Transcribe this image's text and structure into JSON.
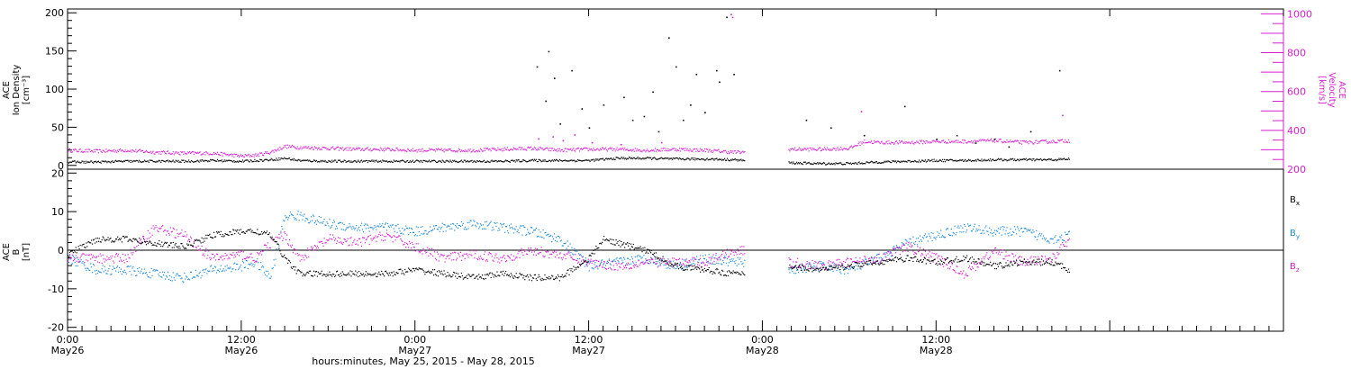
{
  "colors": {
    "density": "#000000",
    "velocity": "#d61fd0",
    "bx": "#000000",
    "by": "#1e8ad6",
    "bz": "#d61fd0",
    "axis": "#000000"
  },
  "xlabel": "hours:minutes, May 25, 2015 - May 28, 2015",
  "chart_data": [
    {
      "type": "scatter",
      "panel": "top",
      "ylabel_lines": [
        "ACE",
        "Ion Density",
        "[cm⁻³]"
      ],
      "y2label_lines": [
        "ACE",
        "Velocity",
        "[km/s]"
      ],
      "ylim": [
        -5,
        205
      ],
      "y2lim": [
        200,
        1025
      ],
      "yticks": [
        0,
        50,
        100,
        150,
        200
      ],
      "y2ticks": [
        200,
        400,
        600,
        800,
        1000
      ],
      "xlim_hours": [
        0,
        84
      ],
      "data_gaps_hours": [
        [
          46.8,
          49.8
        ]
      ],
      "data_end_hour": 69.2,
      "series": [
        {
          "key": "density",
          "axis": "left",
          "x_hours": [
            0,
            2,
            4,
            6,
            8,
            10,
            12,
            14,
            15,
            16,
            18,
            20,
            22,
            24,
            26,
            28,
            30,
            32,
            34,
            36,
            38,
            40,
            42,
            44,
            46,
            46.8,
            49.8,
            52,
            54,
            56,
            58,
            60,
            62,
            64,
            66,
            68,
            69.2
          ],
          "values": [
            5,
            5,
            6,
            6,
            6,
            7,
            6,
            8,
            10,
            7,
            6,
            6,
            6,
            6,
            6,
            6,
            6,
            7,
            7,
            7,
            10,
            10,
            9,
            9,
            8,
            7,
            4,
            3,
            3,
            5,
            6,
            7,
            7,
            8,
            8,
            8,
            9
          ],
          "spikes_x_hours": [
            32.4,
            33.0,
            33.2,
            33.6,
            34.0,
            34.8,
            35.5,
            36.0,
            37.0,
            38.4,
            39.0,
            39.8,
            40.4,
            40.8,
            41.5,
            42.0,
            42.5,
            43.0,
            43.4,
            44.0,
            44.8,
            45.0,
            45.5,
            46.0,
            51.0,
            52.7,
            55.0,
            57.8,
            60.0,
            61.4,
            62.7,
            64.0,
            65.0,
            66.5,
            68.5
          ],
          "spikes_values": [
            130,
            85,
            150,
            115,
            55,
            125,
            75,
            50,
            80,
            90,
            60,
            65,
            97,
            45,
            168,
            130,
            60,
            80,
            120,
            70,
            125,
            110,
            195,
            120,
            60,
            50,
            40,
            78,
            35,
            40,
            30,
            35,
            25,
            45,
            125
          ]
        },
        {
          "key": "velocity",
          "axis": "right",
          "x_hours": [
            0,
            2,
            4,
            6,
            8,
            10,
            12,
            13,
            14,
            15,
            16,
            18,
            20,
            22,
            24,
            26,
            28,
            30,
            32,
            34,
            36,
            38,
            40,
            42,
            44,
            46,
            46.8,
            49.8,
            52,
            54,
            55,
            56,
            58,
            60,
            62,
            64,
            66,
            68,
            69.2
          ],
          "values": [
            300,
            295,
            300,
            290,
            285,
            285,
            270,
            275,
            290,
            320,
            315,
            310,
            305,
            305,
            300,
            300,
            300,
            305,
            310,
            300,
            305,
            305,
            300,
            305,
            300,
            290,
            290,
            305,
            305,
            310,
            345,
            340,
            340,
            345,
            345,
            350,
            340,
            345,
            350
          ],
          "spikes_x_hours": [
            32.5,
            33.5,
            34.2,
            35.0,
            36.2,
            38.2,
            41.0,
            45.8,
            45.9,
            54.8,
            68.7
          ],
          "spikes_values": [
            360,
            370,
            350,
            380,
            340,
            330,
            340,
            1000,
            985,
            500,
            480
          ]
        }
      ]
    },
    {
      "type": "scatter",
      "panel": "bottom",
      "ylabel_lines": [
        "ACE",
        "B",
        "[nT]"
      ],
      "ylim": [
        -21,
        21
      ],
      "yticks": [
        -20,
        -10,
        0,
        10,
        20
      ],
      "zero_line": true,
      "xticks": [
        "0:00",
        "12:00",
        "0:00",
        "12:00",
        "0:00",
        "12:00"
      ],
      "xtick_sublabels": [
        "May26",
        "May26",
        "May27",
        "May27",
        "May28",
        "May28"
      ],
      "xticks_hours": [
        0,
        12,
        24,
        36,
        48,
        60
      ],
      "xlim_hours": [
        0,
        84
      ],
      "data_gaps_hours": [
        [
          46.8,
          49.8
        ]
      ],
      "data_end_hour": 69.2,
      "legend": [
        {
          "base": "B",
          "sub": "x"
        },
        {
          "base": "B",
          "sub": "y"
        },
        {
          "base": "B",
          "sub": "z"
        }
      ],
      "legend_placement": "right",
      "series": [
        {
          "key": "bx",
          "x_hours": [
            0,
            2,
            4,
            6,
            8,
            10,
            12,
            13,
            14,
            15,
            16,
            18,
            20,
            22,
            24,
            26,
            28,
            30,
            32,
            34,
            36,
            37,
            38,
            40,
            42,
            44,
            46,
            46.8,
            49.8,
            52,
            54,
            56,
            58,
            60,
            62,
            64,
            66,
            68,
            69.2
          ],
          "values": [
            -1,
            3,
            3,
            2,
            1,
            4,
            5,
            5,
            4,
            -2,
            -6,
            -6,
            -6,
            -6,
            -5,
            -6,
            -7,
            -6,
            -7,
            -7,
            -2,
            3,
            2,
            0,
            -4,
            -5,
            -6,
            -6,
            -4,
            -5,
            -4,
            -3,
            -2,
            -3,
            -2,
            -4,
            -3,
            -3,
            -5
          ]
        },
        {
          "key": "by",
          "x_hours": [
            0,
            2,
            4,
            6,
            8,
            10,
            12,
            13,
            14,
            15,
            16,
            18,
            20,
            22,
            24,
            26,
            28,
            30,
            32,
            34,
            36,
            38,
            40,
            42,
            44,
            46,
            46.8,
            49.8,
            52,
            54,
            56,
            58,
            60,
            62,
            64,
            66,
            68,
            69.2
          ],
          "values": [
            -2,
            -5,
            -5,
            -6,
            -7,
            -5,
            -4,
            -3,
            -7,
            9,
            9,
            7,
            6,
            6,
            5,
            6,
            7,
            6,
            5,
            3,
            -4,
            -3,
            -2,
            -4,
            -2,
            -3,
            -3,
            -5,
            -4,
            -5,
            -2,
            2,
            4,
            6,
            5,
            5,
            3,
            4
          ]
        },
        {
          "key": "bz",
          "x_hours": [
            0,
            2,
            4,
            6,
            8,
            10,
            12,
            13,
            14,
            15,
            16,
            18,
            20,
            22,
            24,
            26,
            28,
            30,
            32,
            34,
            36,
            38,
            40,
            42,
            44,
            46,
            46.8,
            49.8,
            52,
            54,
            56,
            58,
            60,
            62,
            64,
            66,
            68,
            69.2
          ],
          "values": [
            -2,
            -2,
            -2,
            6,
            4,
            -2,
            -1,
            -2,
            2,
            4,
            -2,
            3,
            2,
            4,
            1,
            -2,
            -1,
            -2,
            0,
            -1,
            -3,
            -4,
            -3,
            -3,
            -3,
            0,
            0,
            -3,
            -4,
            -3,
            -2,
            1,
            -2,
            -6,
            0,
            -3,
            -2,
            3
          ]
        }
      ]
    }
  ]
}
